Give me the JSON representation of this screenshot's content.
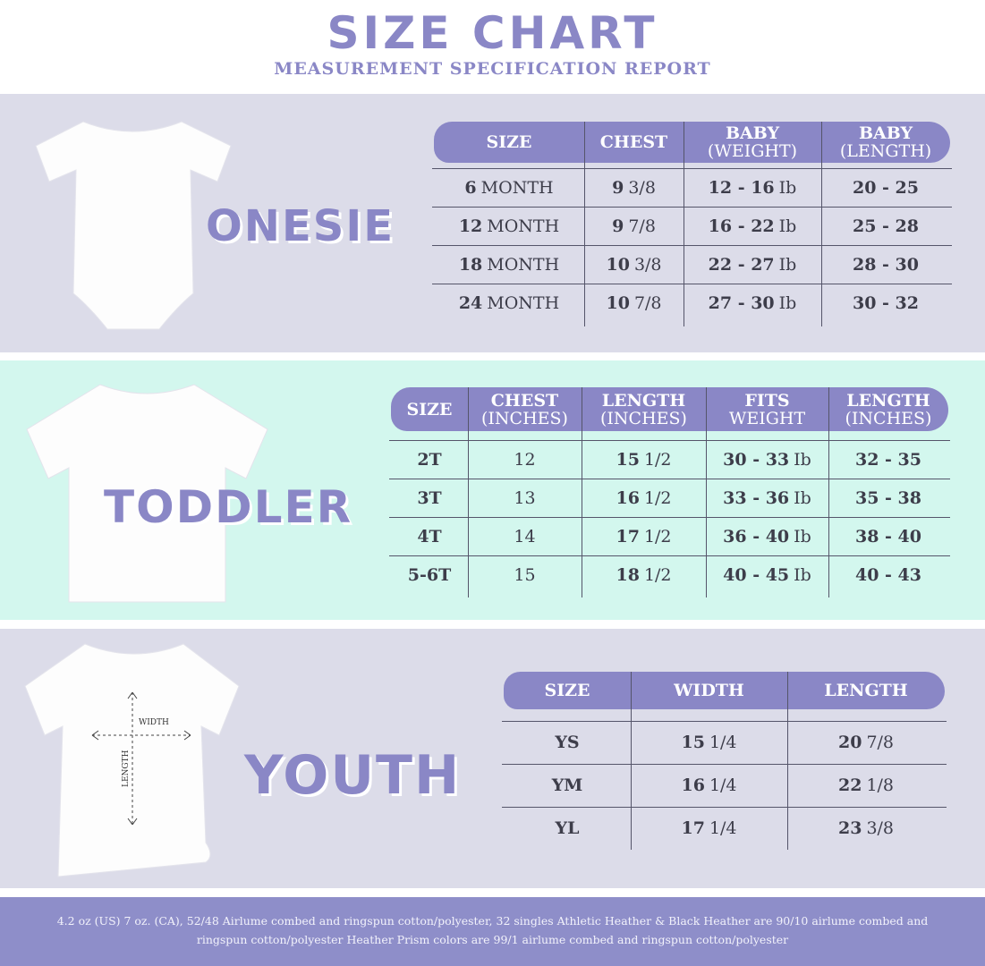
{
  "title": "SIZE CHART",
  "subtitle": "MEASUREMENT SPECIFICATION REPORT",
  "colors": {
    "accent": "#8a87c6",
    "onesie_bg": "#dcdce9",
    "toddler_bg": "#d3f7ee",
    "youth_bg": "#dcdce9",
    "footer_bg": "#8e8ec9"
  },
  "sections": [
    {
      "label": "ONESIE",
      "headers": [
        {
          "main": "SIZE",
          "sub": ""
        },
        {
          "main": "CHEST",
          "sub": ""
        },
        {
          "main": "BABY",
          "sub": "(WEIGHT)"
        },
        {
          "main": "BABY",
          "sub": "(LENGTH)"
        }
      ],
      "rows": [
        [
          {
            "b": "6",
            "r": "MONTH"
          },
          {
            "b": "9",
            "r": "3/8"
          },
          {
            "b": "12 - 16",
            "r": "Ib"
          },
          {
            "b": "20 - 25",
            "r": ""
          }
        ],
        [
          {
            "b": "12",
            "r": "MONTH"
          },
          {
            "b": "9",
            "r": "7/8"
          },
          {
            "b": "16 - 22",
            "r": "Ib"
          },
          {
            "b": "25 - 28",
            "r": ""
          }
        ],
        [
          {
            "b": "18",
            "r": "MONTH"
          },
          {
            "b": "10",
            "r": "3/8"
          },
          {
            "b": "22 - 27",
            "r": "Ib"
          },
          {
            "b": "28 - 30",
            "r": ""
          }
        ],
        [
          {
            "b": "24",
            "r": "MONTH"
          },
          {
            "b": "10",
            "r": "7/8"
          },
          {
            "b": "27 - 30",
            "r": "Ib"
          },
          {
            "b": "30 - 32",
            "r": ""
          }
        ]
      ]
    },
    {
      "label": "TODDLER",
      "headers": [
        {
          "main": "SIZE",
          "sub": ""
        },
        {
          "main": "CHEST",
          "sub": "(INCHES)"
        },
        {
          "main": "LENGTH",
          "sub": "(INCHES)"
        },
        {
          "main": "FITS",
          "sub": "WEIGHT"
        },
        {
          "main": "LENGTH",
          "sub": "(INCHES)"
        }
      ],
      "rows": [
        [
          {
            "b": "2T",
            "r": ""
          },
          {
            "b": "",
            "r": "12"
          },
          {
            "b": "15",
            "r": "1/2"
          },
          {
            "b": "30 - 33",
            "r": "Ib"
          },
          {
            "b": "32 - 35",
            "r": ""
          }
        ],
        [
          {
            "b": "3T",
            "r": ""
          },
          {
            "b": "",
            "r": "13"
          },
          {
            "b": "16",
            "r": "1/2"
          },
          {
            "b": "33 - 36",
            "r": "Ib"
          },
          {
            "b": "35 - 38",
            "r": ""
          }
        ],
        [
          {
            "b": "4T",
            "r": ""
          },
          {
            "b": "",
            "r": "14"
          },
          {
            "b": "17",
            "r": "1/2"
          },
          {
            "b": "36 - 40",
            "r": "Ib"
          },
          {
            "b": "38 - 40",
            "r": ""
          }
        ],
        [
          {
            "b": "5-6T",
            "r": ""
          },
          {
            "b": "",
            "r": "15"
          },
          {
            "b": "18",
            "r": "1/2"
          },
          {
            "b": "40 - 45",
            "r": "Ib"
          },
          {
            "b": "40 - 43",
            "r": ""
          }
        ]
      ]
    },
    {
      "label": "YOUTH",
      "diagram": {
        "width_label": "WIDTH",
        "length_label": "LENGTH"
      },
      "headers": [
        {
          "main": "SIZE",
          "sub": ""
        },
        {
          "main": "WIDTH",
          "sub": ""
        },
        {
          "main": "LENGTH",
          "sub": ""
        }
      ],
      "rows": [
        [
          {
            "b": "YS",
            "r": ""
          },
          {
            "b": "15",
            "r": "1/4"
          },
          {
            "b": "20",
            "r": "7/8"
          }
        ],
        [
          {
            "b": "YM",
            "r": ""
          },
          {
            "b": "16",
            "r": "1/4"
          },
          {
            "b": "22",
            "r": "1/8"
          }
        ],
        [
          {
            "b": "YL",
            "r": ""
          },
          {
            "b": "17",
            "r": "1/4"
          },
          {
            "b": "23",
            "r": "3/8"
          }
        ]
      ]
    }
  ],
  "footer": "4.2 oz (US) 7 oz. (CA), 52/48 Airlume combed and ringspun cotton/polyester, 32 singles Athletic Heather & Black Heather are 90/10 airlume combed and ringspun cotton/polyester Heather Prism colors are 99/1 airlume combed and ringspun cotton/polyester"
}
